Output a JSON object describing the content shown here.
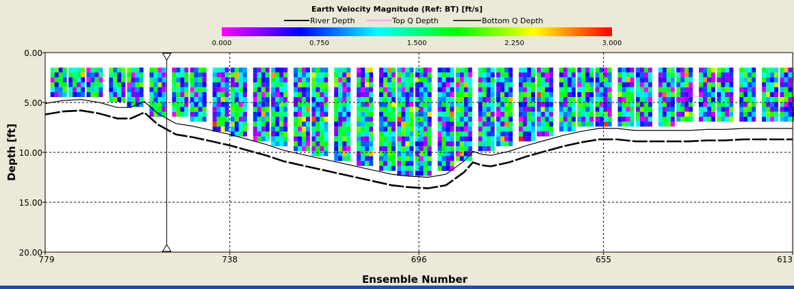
{
  "chart_data": {
    "type": "heatmap",
    "title": "Earth Velocity Magnitude (Ref: BT) [ft/s]",
    "legend": [
      {
        "name": "River Depth",
        "color": "#000000"
      },
      {
        "name": "Top Q Depth",
        "color": "#ff66ff"
      },
      {
        "name": "Bottom Q Depth",
        "color": "#000000"
      }
    ],
    "colorbar": {
      "min": 0.0,
      "max": 3.0,
      "tick_labels": [
        "0.000",
        "0.750",
        "1.500",
        "2.250",
        "3.000"
      ],
      "colormap": [
        "#ff00ff",
        "#0000ff",
        "#00ffff",
        "#00ff00",
        "#ffff00",
        "#ff0000"
      ]
    },
    "xlabel": "Ensemble Number",
    "ylabel": "Depth [ft]",
    "x_ticks": [
      "779",
      "738",
      "696",
      "655",
      "613"
    ],
    "y_ticks": [
      "0.00",
      "5.00",
      "10.00",
      "15.00",
      "20.00"
    ],
    "xlim": [
      779,
      613
    ],
    "ylim": [
      0,
      20
    ],
    "grid": true,
    "cursor_ensemble": 752,
    "top_cell_depth": 1.5,
    "profile_bottom_depth": [
      [
        776,
        4.7
      ],
      [
        772,
        4.8
      ],
      [
        768,
        4.9
      ],
      [
        763,
        5.1
      ],
      [
        759,
        5.6
      ],
      [
        754,
        6.5
      ],
      [
        749,
        6.9
      ],
      [
        745,
        7.2
      ],
      [
        740,
        8.0
      ],
      [
        736,
        8.5
      ],
      [
        731,
        9.2
      ],
      [
        727,
        9.7
      ],
      [
        722,
        10.3
      ],
      [
        718,
        10.8
      ],
      [
        713,
        11.3
      ],
      [
        708,
        11.7
      ],
      [
        703,
        12.1
      ],
      [
        699,
        12.4
      ],
      [
        695,
        12.5
      ],
      [
        690,
        12.3
      ],
      [
        686,
        11.3
      ],
      [
        681,
        10.3
      ],
      [
        677,
        9.5
      ],
      [
        672,
        9.0
      ],
      [
        668,
        8.5
      ],
      [
        663,
        8.0
      ],
      [
        659,
        7.8
      ],
      [
        655,
        7.5
      ],
      [
        650,
        7.6
      ],
      [
        646,
        7.7
      ],
      [
        641,
        7.6
      ],
      [
        637,
        7.4
      ],
      [
        632,
        7.3
      ],
      [
        628,
        7.3
      ],
      [
        623,
        7.2
      ],
      [
        618,
        7.2
      ],
      [
        614,
        7.2
      ]
    ],
    "river_depth": [
      [
        779,
        6.2
      ],
      [
        775,
        5.9
      ],
      [
        771,
        5.8
      ],
      [
        767,
        6.1
      ],
      [
        763,
        6.6
      ],
      [
        760,
        6.6
      ],
      [
        757,
        6.0
      ],
      [
        754,
        7.2
      ],
      [
        750,
        8.2
      ],
      [
        746,
        8.5
      ],
      [
        742,
        8.9
      ],
      [
        738,
        9.3
      ],
      [
        734,
        9.8
      ],
      [
        730,
        10.3
      ],
      [
        726,
        10.9
      ],
      [
        722,
        11.3
      ],
      [
        718,
        11.7
      ],
      [
        714,
        12.1
      ],
      [
        710,
        12.5
      ],
      [
        706,
        12.9
      ],
      [
        702,
        13.3
      ],
      [
        698,
        13.5
      ],
      [
        694,
        13.6
      ],
      [
        690,
        13.3
      ],
      [
        686,
        12.0
      ],
      [
        684,
        11.0
      ],
      [
        682,
        11.3
      ],
      [
        680,
        11.4
      ],
      [
        676,
        11.0
      ],
      [
        672,
        10.4
      ],
      [
        668,
        9.9
      ],
      [
        664,
        9.4
      ],
      [
        660,
        9.0
      ],
      [
        656,
        8.7
      ],
      [
        652,
        8.7
      ],
      [
        648,
        8.9
      ],
      [
        644,
        8.9
      ],
      [
        640,
        8.9
      ],
      [
        636,
        8.9
      ],
      [
        632,
        8.8
      ],
      [
        628,
        8.8
      ],
      [
        624,
        8.7
      ],
      [
        620,
        8.7
      ],
      [
        616,
        8.7
      ],
      [
        613,
        8.7
      ]
    ]
  }
}
